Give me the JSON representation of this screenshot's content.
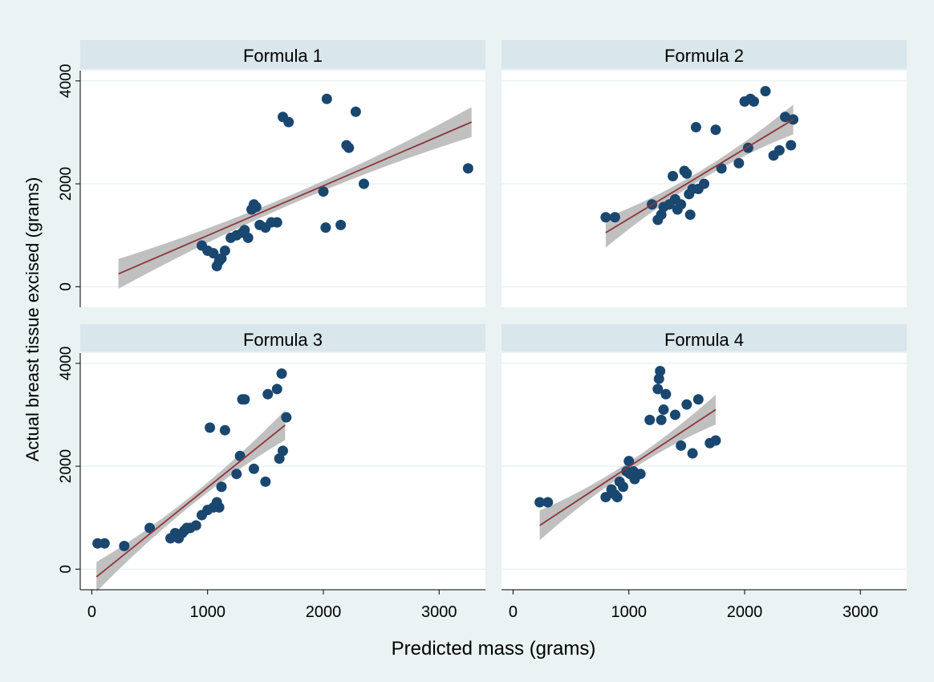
{
  "colors": {
    "outer_background": "#eaf2f3",
    "strip_background": "#d9e6eb",
    "plot_background": "#ffffff",
    "grid": "#eaf2f3",
    "marker": "#1a476f",
    "fit_line": "#90353b",
    "ci_band": "#c0c0c0",
    "text": "#000000"
  },
  "labels": {
    "xlabel": "Predicted mass (grams)",
    "ylabel": "Actual breast tissue excised (grams)"
  },
  "chart_data": {
    "type": "scatter",
    "layout": "2x2 small multiples",
    "xlabel": "Predicted mass (grams)",
    "ylabel": "Actual breast tissue excised (grams)",
    "xlim": [
      -100,
      3400
    ],
    "ylim": [
      -400,
      4200
    ],
    "x_ticks": [
      "0",
      "1000",
      "2000",
      "3000"
    ],
    "y_ticks": [
      "0",
      "2000",
      "4000"
    ],
    "x_tick_values": [
      0,
      1000,
      2000,
      3000
    ],
    "y_tick_values": [
      0,
      2000,
      4000
    ],
    "grid": true,
    "legend": "none",
    "panels": [
      {
        "title": "Formula 1",
        "points": [
          [
            950,
            800
          ],
          [
            1000,
            700
          ],
          [
            1050,
            650
          ],
          [
            1080,
            400
          ],
          [
            1100,
            500
          ],
          [
            1120,
            550
          ],
          [
            1150,
            700
          ],
          [
            1200,
            950
          ],
          [
            1250,
            1000
          ],
          [
            1300,
            1050
          ],
          [
            1320,
            1100
          ],
          [
            1350,
            950
          ],
          [
            1380,
            1500
          ],
          [
            1400,
            1600
          ],
          [
            1420,
            1550
          ],
          [
            1450,
            1200
          ],
          [
            1500,
            1150
          ],
          [
            1550,
            1250
          ],
          [
            1600,
            1250
          ],
          [
            1650,
            3300
          ],
          [
            1700,
            3200
          ],
          [
            2000,
            1850
          ],
          [
            2020,
            1150
          ],
          [
            2030,
            3650
          ],
          [
            2150,
            1200
          ],
          [
            2200,
            2750
          ],
          [
            2220,
            2700
          ],
          [
            2280,
            3400
          ],
          [
            2350,
            2000
          ],
          [
            3250,
            2300
          ]
        ],
        "fit": {
          "x": [
            230,
            3280
          ],
          "y": [
            250,
            3200
          ]
        }
      },
      {
        "title": "Formula 2",
        "points": [
          [
            800,
            1350
          ],
          [
            880,
            1350
          ],
          [
            1200,
            1600
          ],
          [
            1250,
            1300
          ],
          [
            1280,
            1400
          ],
          [
            1300,
            1550
          ],
          [
            1350,
            1600
          ],
          [
            1380,
            2150
          ],
          [
            1400,
            1700
          ],
          [
            1420,
            1500
          ],
          [
            1450,
            1600
          ],
          [
            1480,
            2250
          ],
          [
            1500,
            2200
          ],
          [
            1520,
            1800
          ],
          [
            1530,
            1400
          ],
          [
            1550,
            1900
          ],
          [
            1580,
            3100
          ],
          [
            1600,
            1900
          ],
          [
            1650,
            2000
          ],
          [
            1750,
            3050
          ],
          [
            1800,
            2300
          ],
          [
            1950,
            2400
          ],
          [
            2000,
            3600
          ],
          [
            2030,
            2700
          ],
          [
            2050,
            3650
          ],
          [
            2080,
            3600
          ],
          [
            2180,
            3800
          ],
          [
            2250,
            2550
          ],
          [
            2300,
            2650
          ],
          [
            2350,
            3300
          ],
          [
            2400,
            2750
          ],
          [
            2420,
            3250
          ]
        ],
        "fit": {
          "x": [
            800,
            2420
          ],
          "y": [
            1050,
            3250
          ]
        }
      },
      {
        "title": "Formula 3",
        "points": [
          [
            50,
            500
          ],
          [
            110,
            500
          ],
          [
            280,
            450
          ],
          [
            500,
            800
          ],
          [
            680,
            600
          ],
          [
            720,
            700
          ],
          [
            750,
            600
          ],
          [
            780,
            700
          ],
          [
            800,
            750
          ],
          [
            820,
            800
          ],
          [
            850,
            800
          ],
          [
            900,
            850
          ],
          [
            950,
            1050
          ],
          [
            1000,
            1150
          ],
          [
            1020,
            2750
          ],
          [
            1050,
            1200
          ],
          [
            1080,
            1300
          ],
          [
            1100,
            1200
          ],
          [
            1120,
            1600
          ],
          [
            1150,
            2700
          ],
          [
            1250,
            1850
          ],
          [
            1280,
            2200
          ],
          [
            1300,
            3300
          ],
          [
            1320,
            3300
          ],
          [
            1400,
            1950
          ],
          [
            1500,
            1700
          ],
          [
            1520,
            3400
          ],
          [
            1600,
            3500
          ],
          [
            1620,
            2150
          ],
          [
            1640,
            3800
          ],
          [
            1650,
            2300
          ],
          [
            1680,
            2950
          ]
        ],
        "fit": {
          "x": [
            40,
            1670
          ],
          "y": [
            -150,
            2800
          ]
        }
      },
      {
        "title": "Formula 4",
        "points": [
          [
            230,
            1300
          ],
          [
            300,
            1300
          ],
          [
            800,
            1400
          ],
          [
            850,
            1550
          ],
          [
            880,
            1450
          ],
          [
            900,
            1400
          ],
          [
            920,
            1700
          ],
          [
            950,
            1600
          ],
          [
            980,
            1900
          ],
          [
            1000,
            2100
          ],
          [
            1010,
            1850
          ],
          [
            1040,
            1900
          ],
          [
            1050,
            1750
          ],
          [
            1100,
            1850
          ],
          [
            1180,
            2900
          ],
          [
            1250,
            3500
          ],
          [
            1260,
            3700
          ],
          [
            1270,
            3850
          ],
          [
            1280,
            2900
          ],
          [
            1300,
            3100
          ],
          [
            1320,
            3400
          ],
          [
            1400,
            3000
          ],
          [
            1450,
            2400
          ],
          [
            1500,
            3200
          ],
          [
            1550,
            2250
          ],
          [
            1600,
            3300
          ],
          [
            1700,
            2450
          ],
          [
            1750,
            2500
          ]
        ],
        "fit": {
          "x": [
            230,
            1750
          ],
          "y": [
            850,
            3100
          ]
        }
      }
    ]
  }
}
